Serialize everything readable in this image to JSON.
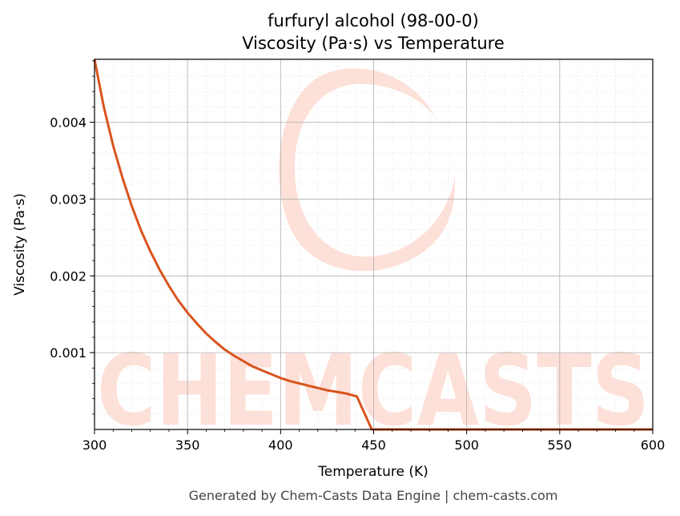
{
  "chart_data": {
    "type": "line",
    "title": "furfuryl alcohol (98-00-0)",
    "subtitle": "Viscosity (Pa·s) vs Temperature",
    "xlabel": "Temperature (K)",
    "ylabel": "Viscosity (Pa·s)",
    "xlim": [
      300,
      600
    ],
    "ylim": [
      0.0,
      0.00482
    ],
    "x_ticks": [
      300,
      350,
      400,
      450,
      500,
      550,
      600
    ],
    "x_tick_labels": [
      "300",
      "350",
      "400",
      "450",
      "500",
      "550",
      "600"
    ],
    "y_ticks": [
      0.001,
      0.002,
      0.003,
      0.004
    ],
    "y_tick_labels": [
      "0.001",
      "0.002",
      "0.003",
      "0.004"
    ],
    "grid": true,
    "series": [
      {
        "color": "#d9541e",
        "x": [
          300,
          305,
          310,
          315,
          320,
          325,
          330,
          335,
          340,
          345,
          350,
          355,
          360,
          365,
          370,
          375,
          380,
          385,
          390,
          395,
          400,
          405,
          410,
          415,
          420,
          425,
          430,
          435,
          441,
          449,
          455,
          500,
          550,
          600
        ],
        "y": [
          0.00482,
          0.0042,
          0.0037,
          0.00328,
          0.00291,
          0.00259,
          0.00232,
          0.00208,
          0.00187,
          0.00168,
          0.00152,
          0.00138,
          0.00125,
          0.00114,
          0.00104,
          0.00096,
          0.00089,
          0.00082,
          0.00077,
          0.00072,
          0.00067,
          0.00063,
          0.0006,
          0.00057,
          0.00054,
          0.00051,
          0.00049,
          0.00047,
          0.00043,
          0.0,
          0.0,
          0.0,
          0.0,
          0.0
        ]
      }
    ],
    "watermark": "CHEMCASTS"
  },
  "footer": "Generated by Chem-Casts Data Engine | chem-casts.com",
  "colors": {
    "line": "#d9541e",
    "watermark": "#fde0d8"
  }
}
